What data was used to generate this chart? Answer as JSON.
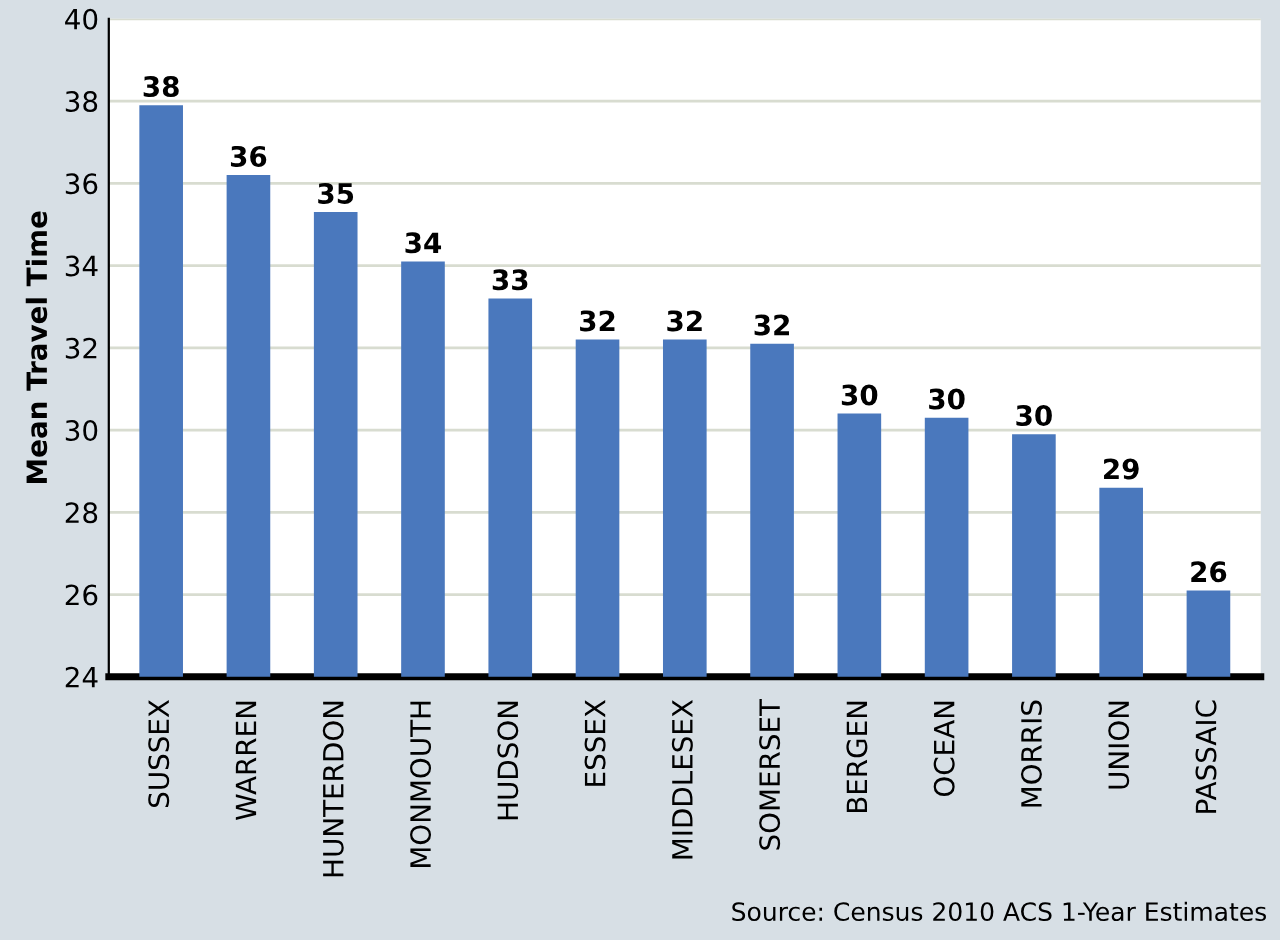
{
  "chart_data": {
    "type": "bar",
    "ylabel": "Mean Travel Time",
    "categories": [
      "SUSSEX",
      "WARREN",
      "HUNTERDON",
      "MONMOUTH",
      "HUDSON",
      "ESSEX",
      "MIDDLESEX",
      "SOMERSET",
      "BERGEN",
      "OCEAN",
      "MORRIS",
      "UNION",
      "PASSAIC"
    ],
    "values": [
      37.9,
      36.2,
      35.3,
      34.1,
      33.2,
      32.2,
      32.2,
      32.1,
      30.4,
      30.3,
      29.9,
      28.6,
      26.1
    ],
    "value_labels": [
      "38",
      "36",
      "35",
      "34",
      "33",
      "32",
      "32",
      "32",
      "30",
      "30",
      "30",
      "29",
      "26"
    ],
    "color": "#4a78bd",
    "ylim": [
      24,
      40
    ],
    "yticks": [
      24,
      26,
      28,
      30,
      32,
      34,
      36,
      38,
      40
    ],
    "grid": "y",
    "annotations": [
      "Source: Census 2010 ACS 1-Year Estimates"
    ]
  }
}
